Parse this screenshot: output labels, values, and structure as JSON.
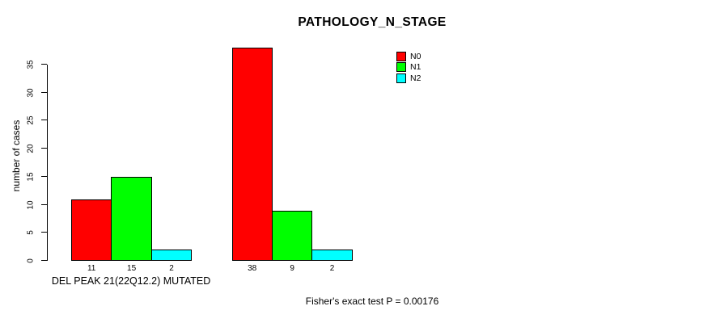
{
  "chart_data": {
    "type": "bar",
    "title": "PATHOLOGY_N_STAGE",
    "ylabel": "number of cases",
    "xlabel": "",
    "ylim": [
      0,
      38
    ],
    "yticks": [
      0,
      5,
      10,
      15,
      20,
      25,
      30,
      35
    ],
    "grid": false,
    "legend_position": "top-right",
    "group_labels": [
      "DEL PEAK 21(22Q12.2) MUTATED",
      ""
    ],
    "series": [
      {
        "name": "N0",
        "color": "#ff0000",
        "values": [
          11,
          38
        ]
      },
      {
        "name": "N1",
        "color": "#00ff00",
        "values": [
          15,
          9
        ]
      },
      {
        "name": "N2",
        "color": "#00ffff",
        "values": [
          2,
          2
        ]
      }
    ],
    "show_value_labels": true,
    "annotation": "Fisher's exact test P = 0.00176"
  }
}
